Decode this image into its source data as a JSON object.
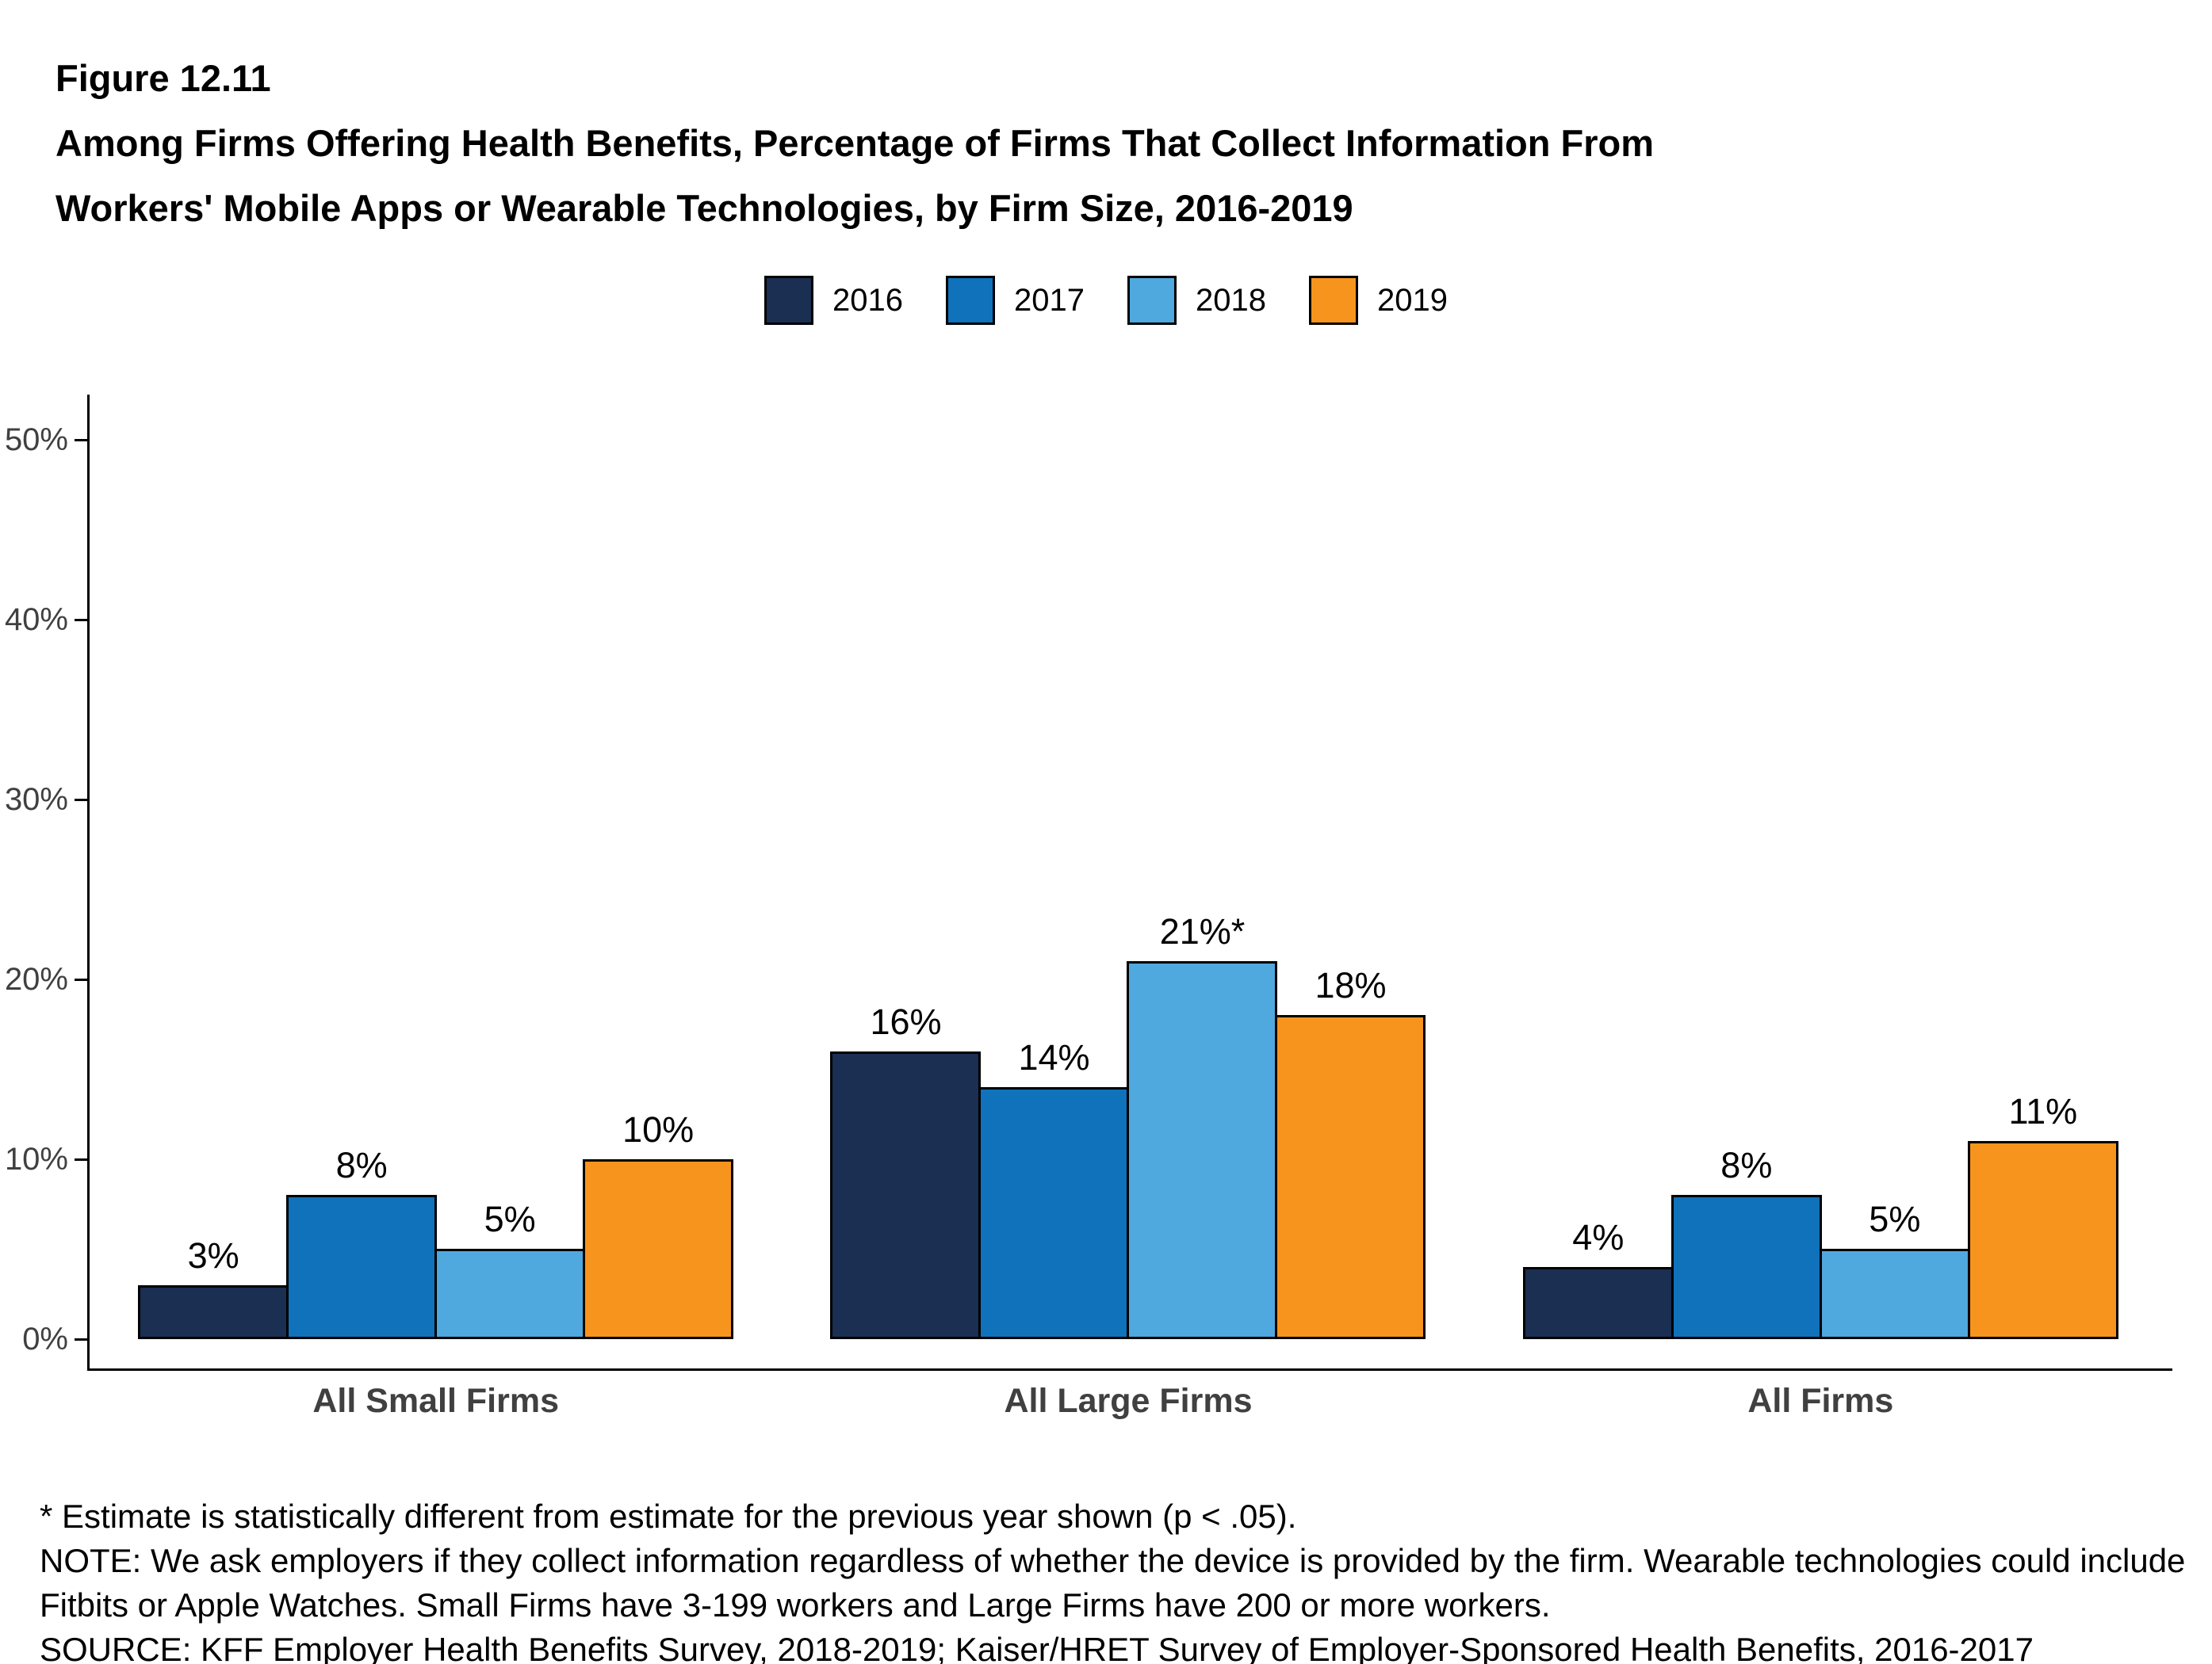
{
  "figure_label": "Figure 12.11",
  "title_line1": "Among Firms Offering Health Benefits, Percentage of Firms That Collect Information From",
  "title_line2": "Workers' Mobile Apps or Wearable Technologies, by Firm Size, 2016-2019",
  "chart_data": {
    "type": "bar",
    "title": "Among Firms Offering Health Benefits, Percentage of Firms That Collect Information From Workers' Mobile Apps or Wearable Technologies, by Firm Size, 2016-2019",
    "categories": [
      "All Small Firms",
      "All Large Firms",
      "All Firms"
    ],
    "series": [
      {
        "name": "2016",
        "color": "#1A2F52",
        "values": [
          3,
          16,
          4
        ],
        "labels": [
          "3%",
          "16%",
          "4%"
        ]
      },
      {
        "name": "2017",
        "color": "#0F72BA",
        "values": [
          8,
          14,
          8
        ],
        "labels": [
          "8%",
          "14%",
          "8%"
        ]
      },
      {
        "name": "2018",
        "color": "#4FA8DE",
        "values": [
          5,
          21,
          5
        ],
        "labels": [
          "5%",
          "21%*",
          "5%"
        ]
      },
      {
        "name": "2019",
        "color": "#F7941D",
        "values": [
          10,
          18,
          11
        ],
        "labels": [
          "10%",
          "18%",
          "11%"
        ]
      }
    ],
    "ylim": [
      0,
      52
    ],
    "yticks": [
      0,
      10,
      20,
      30,
      40,
      50
    ],
    "ytick_labels": [
      "0%",
      "10%",
      "20%",
      "30%",
      "40%",
      "50%"
    ],
    "grid": false,
    "legend_position": "top",
    "xlabel": "",
    "ylabel": ""
  },
  "footnotes": [
    "* Estimate is statistically different from estimate for the previous year shown (p < .05).",
    "NOTE: We ask employers if they collect information regardless of whether the device is provided by the firm.  Wearable technologies could include",
    "Fitbits or Apple Watches. Small Firms have 3-199 workers and Large Firms have 200 or more workers.",
    "SOURCE: KFF Employer Health Benefits Survey, 2018-2019; Kaiser/HRET Survey of Employer-Sponsored Health Benefits, 2016-2017"
  ]
}
